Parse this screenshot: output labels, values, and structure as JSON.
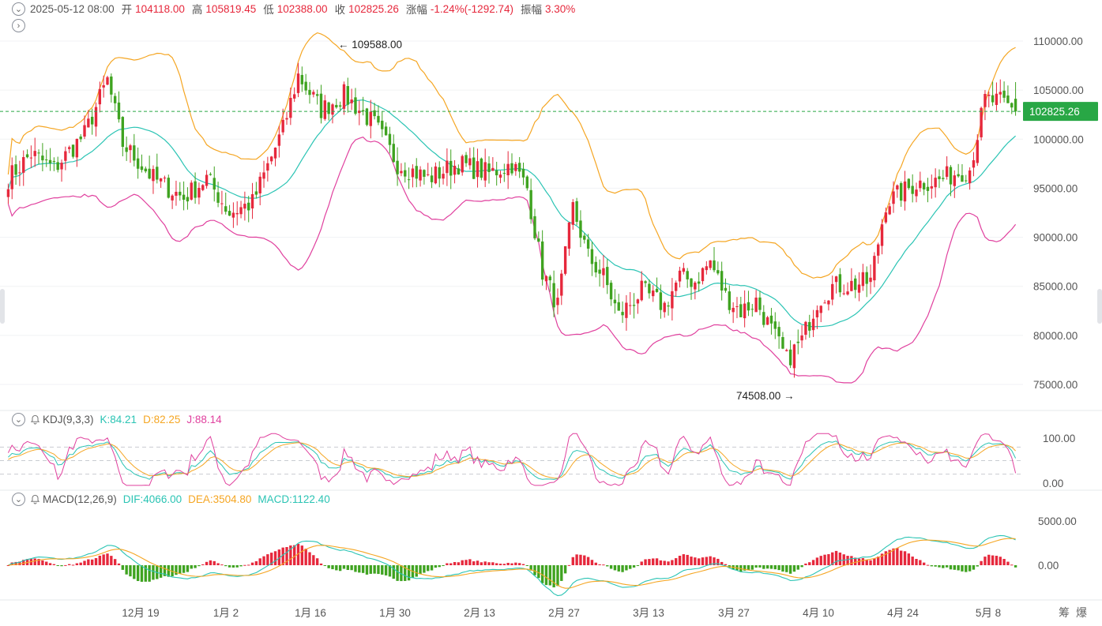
{
  "header": {
    "datetime": "2025-05-12 08:00",
    "open_label": "开",
    "open_value": "104118.00",
    "high_label": "高",
    "high_value": "105819.45",
    "low_label": "低",
    "low_value": "102388.00",
    "close_label": "收",
    "close_value": "102825.26",
    "change_label": "涨幅",
    "change_value": "-1.24%(-1292.74)",
    "amplitude_label": "振幅",
    "amplitude_value": "3.30%"
  },
  "kdj": {
    "name": "KDJ(9,3,3)",
    "k": "K:84.21",
    "d": "D:82.25",
    "j": "J:88.14"
  },
  "macd": {
    "name": "MACD(12,26,9)",
    "dif": "DIF:4066.00",
    "dea": "DEA:3504.80",
    "macd": "MACD:1122.40"
  },
  "colors": {
    "up": "#e6283c",
    "down": "#3fa320",
    "boll_upper": "#f5a623",
    "boll_mid": "#2bc4b4",
    "boll_lower": "#e0409e",
    "price_tag": "#28a745"
  },
  "chart_data": {
    "type": "candlestick",
    "main": {
      "y_ticks": [
        "110000.00",
        "105000.00",
        "100000.00",
        "95000.00",
        "90000.00",
        "85000.00",
        "80000.00",
        "75000.00"
      ],
      "ylim": [
        72500,
        112000
      ],
      "current_price": "102825.26",
      "annotations": {
        "high": "109588.00",
        "low": "74508.00"
      },
      "indicator": "BOLL"
    },
    "x_ticks": [
      "12月 19",
      "1月 2",
      "1月 16",
      "1月 30",
      "2月 13",
      "2月 27",
      "3月 13",
      "3月 27",
      "4月 10",
      "4月 24",
      "5月 8"
    ],
    "kdj_ticks": [
      "100.00",
      "0.00"
    ],
    "macd_ticks": [
      "5000.00",
      "0.00"
    ]
  },
  "footer": {
    "icon_a": "筹",
    "icon_b": "爆"
  }
}
